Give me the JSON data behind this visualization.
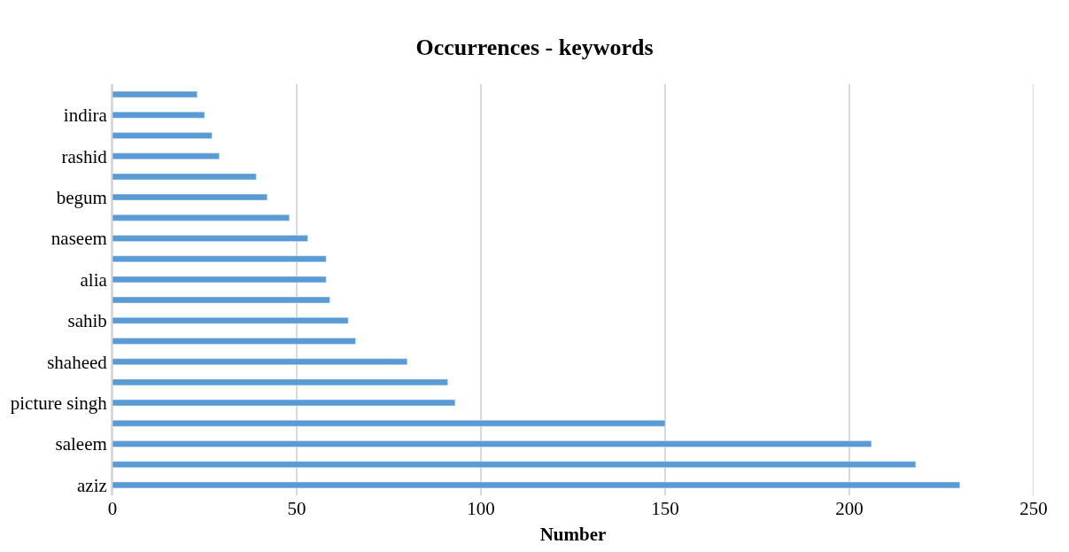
{
  "chart_data": {
    "type": "bar",
    "orientation": "horizontal",
    "title": "Occurrences - keywords",
    "xlabel": "Number",
    "categories": [
      null,
      "indira",
      null,
      "rashid",
      null,
      "begum",
      null,
      "naseem",
      null,
      "alia",
      null,
      "sahib",
      null,
      "shaheed",
      null,
      "picture singh",
      null,
      "saleem",
      null,
      "aziz"
    ],
    "values": [
      23,
      25,
      27,
      29,
      39,
      42,
      48,
      53,
      58,
      58,
      59,
      64,
      66,
      80,
      91,
      93,
      150,
      206,
      218,
      230
    ],
    "color": "#5b9bd5",
    "xlim": [
      0,
      250
    ],
    "xticks": [
      0,
      50,
      100,
      150,
      200,
      250
    ],
    "grid": "x"
  }
}
